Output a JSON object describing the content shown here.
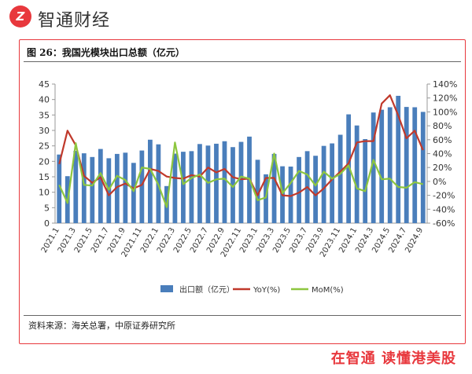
{
  "brand": {
    "logo_glyph": "Z",
    "name": "智通财经",
    "slogan": "在智通 读懂港美股",
    "color": "#e8383d"
  },
  "figure": {
    "title": "图 26：我国光模块出口总额（亿元）",
    "source": "资料来源：海关总署，中原证券研究所"
  },
  "chart_data": {
    "type": "bar",
    "x": [
      "2021.1",
      "2021.2",
      "2021.3",
      "2021.4",
      "2021.5",
      "2021.6",
      "2021.7",
      "2021.8",
      "2021.9",
      "2021.10",
      "2021.11",
      "2021.12",
      "2022.1",
      "2022.2",
      "2022.3",
      "2022.4",
      "2022.5",
      "2022.6",
      "2022.7",
      "2022.8",
      "2022.9",
      "2022.10",
      "2022.11",
      "2022.12",
      "2023.1",
      "2023.2",
      "2023.3",
      "2023.4",
      "2023.5",
      "2023.6",
      "2023.7",
      "2023.8",
      "2023.9",
      "2023.10",
      "2023.11",
      "2023.12",
      "2024.1",
      "2024.2",
      "2024.3",
      "2024.4",
      "2024.5",
      "2024.6",
      "2024.7",
      "2024.8",
      "2024.9"
    ],
    "x_tick_labels": [
      "2021.1",
      "2021.3",
      "2021.5",
      "2021.7",
      "2021.9",
      "2021.11",
      "2022.1",
      "2022.3",
      "2022.5",
      "2022.7",
      "2022.9",
      "2022.11",
      "2023.1",
      "2023.3",
      "2023.5",
      "2023.7",
      "2023.9",
      "2023.11",
      "2024.1",
      "2024.3",
      "2024.5",
      "2024.7",
      "2024.9"
    ],
    "series": [
      {
        "name": "出口额（亿元）",
        "type": "bar",
        "axis": "left",
        "color": "#4a7ebb",
        "values": [
          22.2,
          15.2,
          23.4,
          22.6,
          21.4,
          24.0,
          21.0,
          22.4,
          22.8,
          19.5,
          23.5,
          27.0,
          25.5,
          12.0,
          22.5,
          23.1,
          23.3,
          25.6,
          25.1,
          25.7,
          26.5,
          24.6,
          26.3,
          28.0,
          20.5,
          15.8,
          22.4,
          18.4,
          18.3,
          21.4,
          23.3,
          21.8,
          25.0,
          25.8,
          28.6,
          35.2,
          31.6,
          27.2,
          35.8,
          36.7,
          37.5,
          41.2,
          37.6,
          37.5,
          36.0
        ]
      },
      {
        "name": "YoY(%)",
        "type": "line",
        "axis": "right",
        "color": "#c0392b",
        "values": [
          25,
          73,
          52,
          8,
          -2,
          6,
          -20,
          -8,
          -3,
          -10,
          -5,
          18,
          15,
          7,
          5,
          4,
          9,
          7,
          20,
          13,
          18,
          6,
          3,
          4,
          -20,
          5,
          5,
          -20,
          -21,
          -16,
          -8,
          -20,
          -10,
          3,
          14,
          26,
          56,
          58,
          58,
          112,
          124,
          95,
          62,
          73,
          45
        ]
      },
      {
        "name": "MoM(%)",
        "type": "line",
        "axis": "right",
        "color": "#8dc63f",
        "values": [
          -5,
          -31,
          55,
          -5,
          -6,
          12,
          -12,
          8,
          2,
          -14,
          20,
          18,
          -5,
          -37,
          56,
          -4,
          5,
          10,
          -2,
          3,
          4,
          -8,
          7,
          4,
          -27,
          -23,
          40,
          -17,
          -2,
          15,
          10,
          -6,
          14,
          4,
          11,
          23,
          -10,
          -14,
          31,
          3,
          4,
          -8,
          -9,
          -1,
          -4
        ]
      }
    ],
    "left_axis": {
      "min": 0,
      "max": 45,
      "step": 5
    },
    "right_axis": {
      "min": -60,
      "max": 140,
      "step": 20,
      "unit": "%"
    },
    "legend": "bottom"
  }
}
